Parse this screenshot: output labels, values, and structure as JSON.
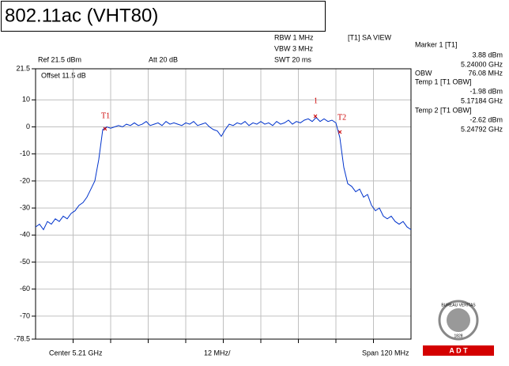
{
  "chart_data": {
    "type": "line",
    "title": "802.11ac (VHT80)",
    "settings": [
      "Ref 21.5 dBm",
      "Att  20 dB",
      "Offset 11.5 dB",
      "RBW 1 MHz",
      "VBW 3 MHz",
      "SWT 20 ms",
      "[T1] SA VIEW"
    ],
    "marker_info": [
      "Marker 1 [T1]",
      "3.88 dBm",
      "5.24000 GHz",
      "OBW",
      "76.08 MHz",
      "Temp 1 [T1 OBW]",
      "-1.98 dBm",
      "5.17184 GHz",
      "Temp 2 [T1 OBW]",
      "-2.62 dBm",
      "5.24792 GHz"
    ],
    "footer": [
      "Center 5.21 GHz",
      "12 MHz/",
      "Span 120 MHz"
    ],
    "markers": [
      "T1",
      "T2",
      "1"
    ],
    "logo": [
      "A  D  T",
      "BUREAU VERITAS",
      "1828"
    ],
    "color": "#0033cc",
    "grid": true,
    "ylim": [
      -78.5,
      21.5
    ],
    "yticks": [
      21.5,
      10,
      0,
      -10,
      -20,
      -30,
      -40,
      -50,
      -60,
      -70,
      -78.5
    ],
    "values": [
      -37,
      -36,
      -38,
      -35,
      -36,
      -34,
      -35,
      -33,
      -34,
      -32,
      -31,
      -29,
      -28,
      -26,
      -23,
      -20,
      -12,
      -1,
      0,
      -0.5,
      0,
      0.5,
      0,
      1,
      0.5,
      1.5,
      0.5,
      1,
      2,
      0.5,
      1,
      1.5,
      0.5,
      2,
      1,
      1.5,
      1,
      0.5,
      1.5,
      1,
      2,
      0.5,
      1,
      1.5,
      0,
      -1,
      -1.5,
      -3.5,
      -1,
      1,
      0.5,
      1.5,
      1,
      2,
      0.5,
      1.5,
      1,
      2,
      1,
      1.5,
      0.5,
      2,
      1,
      1.5,
      2.5,
      1,
      2,
      1.5,
      2.5,
      3,
      2,
      3.5,
      2,
      3,
      2,
      2.5,
      1.5,
      -4,
      -15,
      -21,
      -22,
      -24,
      -23,
      -26,
      -25,
      -29,
      -31,
      -30,
      -33,
      -34,
      -33,
      -35,
      -36,
      -35,
      -37,
      -38
    ]
  }
}
